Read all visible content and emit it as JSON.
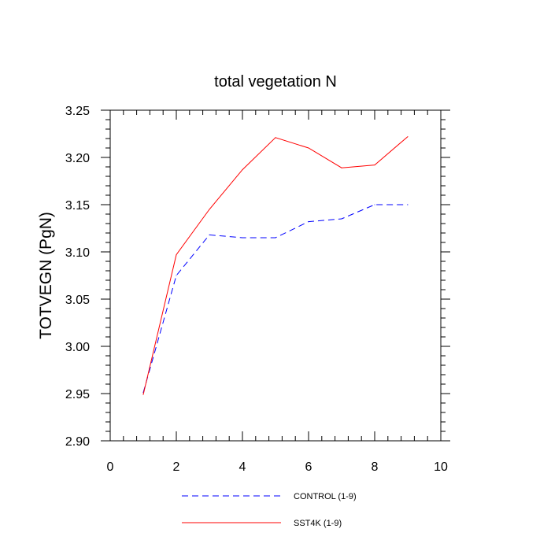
{
  "chart_data": {
    "type": "line",
    "title": "total vegetation N",
    "xlabel": "",
    "ylabel": "TOTVEGN  (PgN)",
    "xlim": [
      0,
      10
    ],
    "ylim": [
      2.9,
      3.25
    ],
    "x_ticks": [
      0,
      2,
      4,
      6,
      8,
      10
    ],
    "x_tick_labels": [
      "0",
      "2",
      "4",
      "6",
      "8",
      "10"
    ],
    "y_ticks": [
      2.9,
      2.95,
      3.0,
      3.05,
      3.1,
      3.15,
      3.2,
      3.25
    ],
    "y_tick_labels": [
      "2.90",
      "2.95",
      "3.00",
      "3.05",
      "3.10",
      "3.15",
      "3.20",
      "3.25"
    ],
    "x_minor_step": 0.4,
    "y_minor_step": 0.01,
    "grid": false,
    "legend_position": "bottom",
    "series": [
      {
        "name": "CONTROL (1-9)",
        "color": "#0000ff",
        "style": "dashed",
        "x": [
          1,
          2,
          3,
          4,
          5,
          6,
          7,
          8,
          9
        ],
        "values": [
          2.951,
          3.075,
          3.118,
          3.115,
          3.115,
          3.132,
          3.135,
          3.15,
          3.15
        ]
      },
      {
        "name": "SST4K (1-9)",
        "color": "#ff0000",
        "style": "solid",
        "x": [
          1,
          2,
          3,
          4,
          5,
          6,
          7,
          8,
          9
        ],
        "values": [
          2.949,
          3.097,
          3.145,
          3.187,
          3.221,
          3.21,
          3.189,
          3.192,
          3.222
        ]
      }
    ]
  }
}
